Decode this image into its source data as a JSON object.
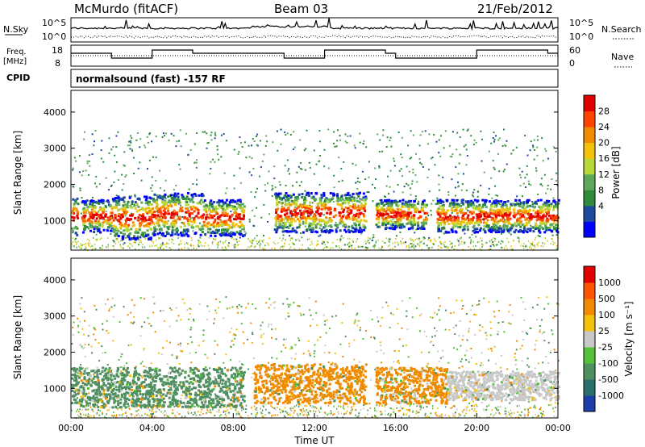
{
  "header": {
    "station": "McMurdo (fitACF)",
    "beam": "Beam 03",
    "date": "21/Feb/2012"
  },
  "noise_panel": {
    "left_label": "N.Sky",
    "right_label": "N.Search",
    "left_ticks": [
      "10^5",
      "10^0"
    ],
    "right_ticks": [
      "10^5",
      "10^0"
    ]
  },
  "freq_panel": {
    "left_label_line1": "Freq.",
    "left_label_line2": "[MHz]",
    "left_ticks": [
      "18",
      "8"
    ],
    "right_label": "Nave",
    "right_ticks": [
      "60",
      "0"
    ]
  },
  "cpid": {
    "label": "CPID",
    "program": "normalsound (fast) -157 RF"
  },
  "chart_data": [
    {
      "type": "heatmap",
      "title": "Power",
      "ylabel": "Slant Range [km]",
      "ylim": [
        180,
        4600
      ],
      "yticks": [
        "1000",
        "2000",
        "3000",
        "4000"
      ],
      "colorbar_label": "Power [dB]",
      "colorbar_ticks": [
        "28",
        "24",
        "20",
        "16",
        "12",
        "8",
        "4"
      ],
      "colorbar_colors": [
        "#0000ff",
        "#1e4ba0",
        "#2f8a3a",
        "#5ea85c",
        "#b6d83a",
        "#f2c10a",
        "#f08a00",
        "#ff4400",
        "#e00000"
      ],
      "echo_regions": [
        {
          "t0": 0.0,
          "t1": 0.3,
          "r0": 600,
          "r1": 1700
        },
        {
          "t0": 0.5,
          "t1": 2.0,
          "r0": 700,
          "r1": 1600
        },
        {
          "t0": 2.0,
          "t1": 4.0,
          "r0": 500,
          "r1": 1700
        },
        {
          "t0": 4.0,
          "t1": 6.5,
          "r0": 600,
          "r1": 1800
        },
        {
          "t0": 6.5,
          "t1": 8.5,
          "r0": 600,
          "r1": 1600
        },
        {
          "t0": 10.0,
          "t1": 14.5,
          "r0": 700,
          "r1": 1800
        },
        {
          "t0": 15.0,
          "t1": 17.5,
          "r0": 800,
          "r1": 1600
        },
        {
          "t0": 18.0,
          "t1": 24.0,
          "r0": 700,
          "r1": 1600
        }
      ]
    },
    {
      "type": "heatmap",
      "title": "Velocity",
      "ylabel": "Slant Range [km]",
      "ylim": [
        180,
        4600
      ],
      "yticks": [
        "1000",
        "2000",
        "3000",
        "4000"
      ],
      "xlabel": "Time UT",
      "xticks": [
        "00:00",
        "04:00",
        "08:00",
        "12:00",
        "16:00",
        "20:00",
        "00:00"
      ],
      "colorbar_label": "Velocity [m s⁻¹]",
      "colorbar_ticks": [
        "1000",
        "500",
        "100",
        "25",
        "-25",
        "-100",
        "-500",
        "-1000"
      ],
      "colorbar_colors": [
        "#1f3fa8",
        "#2a6f6a",
        "#4f8f62",
        "#55c03a",
        "#c8c8c8",
        "#f2c10a",
        "#f08a00",
        "#ff5500",
        "#e00000"
      ],
      "echo_regions": [
        {
          "t0": 0.0,
          "t1": 8.5,
          "r0": 500,
          "r1": 1600,
          "color": "#4f8f62"
        },
        {
          "t0": 9.0,
          "t1": 14.5,
          "r0": 600,
          "r1": 1700,
          "color": "#f08a00"
        },
        {
          "t0": 15.0,
          "t1": 18.5,
          "r0": 600,
          "r1": 1600,
          "color": "#f08a00"
        },
        {
          "t0": 18.5,
          "t1": 24.0,
          "r0": 700,
          "r1": 1500,
          "color": "#c8c8c8"
        }
      ]
    }
  ]
}
